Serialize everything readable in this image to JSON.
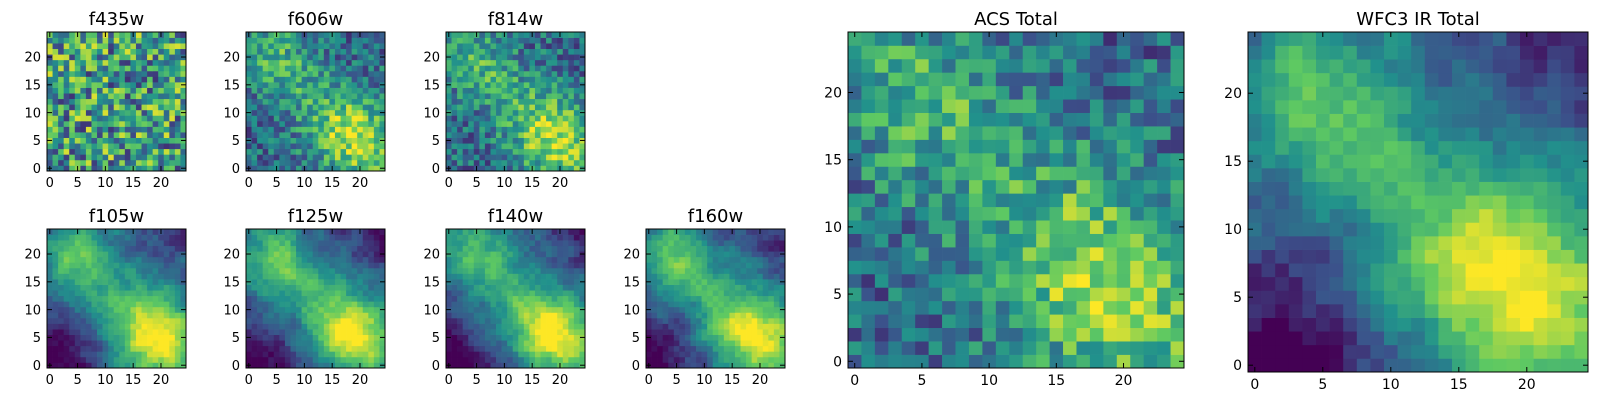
{
  "figure": {
    "colormap": "viridis",
    "colormap_stops": [
      "#440154",
      "#3b528b",
      "#21918c",
      "#5ec962",
      "#fde725"
    ]
  },
  "chart_data": [
    {
      "type": "heatmap",
      "title": "f435w",
      "grid": [
        25,
        25
      ],
      "xticks": [
        "0",
        "5",
        "10",
        "15",
        "20"
      ],
      "yticks": [
        "0",
        "5",
        "10",
        "15",
        "20"
      ],
      "pattern": "noise",
      "seed": 11
    },
    {
      "type": "heatmap",
      "title": "f606w",
      "grid": [
        25,
        25
      ],
      "xticks": [
        "0",
        "5",
        "10",
        "15",
        "20"
      ],
      "yticks": [
        "0",
        "5",
        "10",
        "15",
        "20"
      ],
      "pattern": "diagonal",
      "seed": 23
    },
    {
      "type": "heatmap",
      "title": "f814w",
      "grid": [
        25,
        25
      ],
      "xticks": [
        "0",
        "5",
        "10",
        "15",
        "20"
      ],
      "yticks": [
        "0",
        "5",
        "10",
        "15",
        "20"
      ],
      "pattern": "diagonal",
      "seed": 37
    },
    {
      "type": "heatmap",
      "title": "f105w",
      "grid": [
        25,
        25
      ],
      "xticks": [
        "0",
        "5",
        "10",
        "15",
        "20"
      ],
      "yticks": [
        "0",
        "5",
        "10",
        "15",
        "20"
      ],
      "pattern": "smooth",
      "seed": 41
    },
    {
      "type": "heatmap",
      "title": "f125w",
      "grid": [
        25,
        25
      ],
      "xticks": [
        "0",
        "5",
        "10",
        "15",
        "20"
      ],
      "yticks": [
        "0",
        "5",
        "10",
        "15",
        "20"
      ],
      "pattern": "smooth",
      "seed": 53
    },
    {
      "type": "heatmap",
      "title": "f140w",
      "grid": [
        25,
        25
      ],
      "xticks": [
        "0",
        "5",
        "10",
        "15",
        "20"
      ],
      "yticks": [
        "0",
        "5",
        "10",
        "15",
        "20"
      ],
      "pattern": "smooth",
      "seed": 67
    },
    {
      "type": "heatmap",
      "title": "f160w",
      "grid": [
        25,
        25
      ],
      "xticks": [
        "0",
        "5",
        "10",
        "15",
        "20"
      ],
      "yticks": [
        "0",
        "5",
        "10",
        "15",
        "20"
      ],
      "pattern": "smooth",
      "seed": 71
    },
    {
      "type": "heatmap",
      "title": "ACS Total",
      "grid": [
        25,
        25
      ],
      "xticks": [
        "0",
        "5",
        "10",
        "15",
        "20"
      ],
      "yticks": [
        "0",
        "5",
        "10",
        "15",
        "20"
      ],
      "pattern": "diagonal",
      "seed": 83
    },
    {
      "type": "heatmap",
      "title": "WFC3 IR Total",
      "grid": [
        25,
        25
      ],
      "xticks": [
        "0",
        "5",
        "10",
        "15",
        "20"
      ],
      "yticks": [
        "0",
        "5",
        "10",
        "15",
        "20"
      ],
      "pattern": "smooth",
      "seed": 97
    }
  ]
}
